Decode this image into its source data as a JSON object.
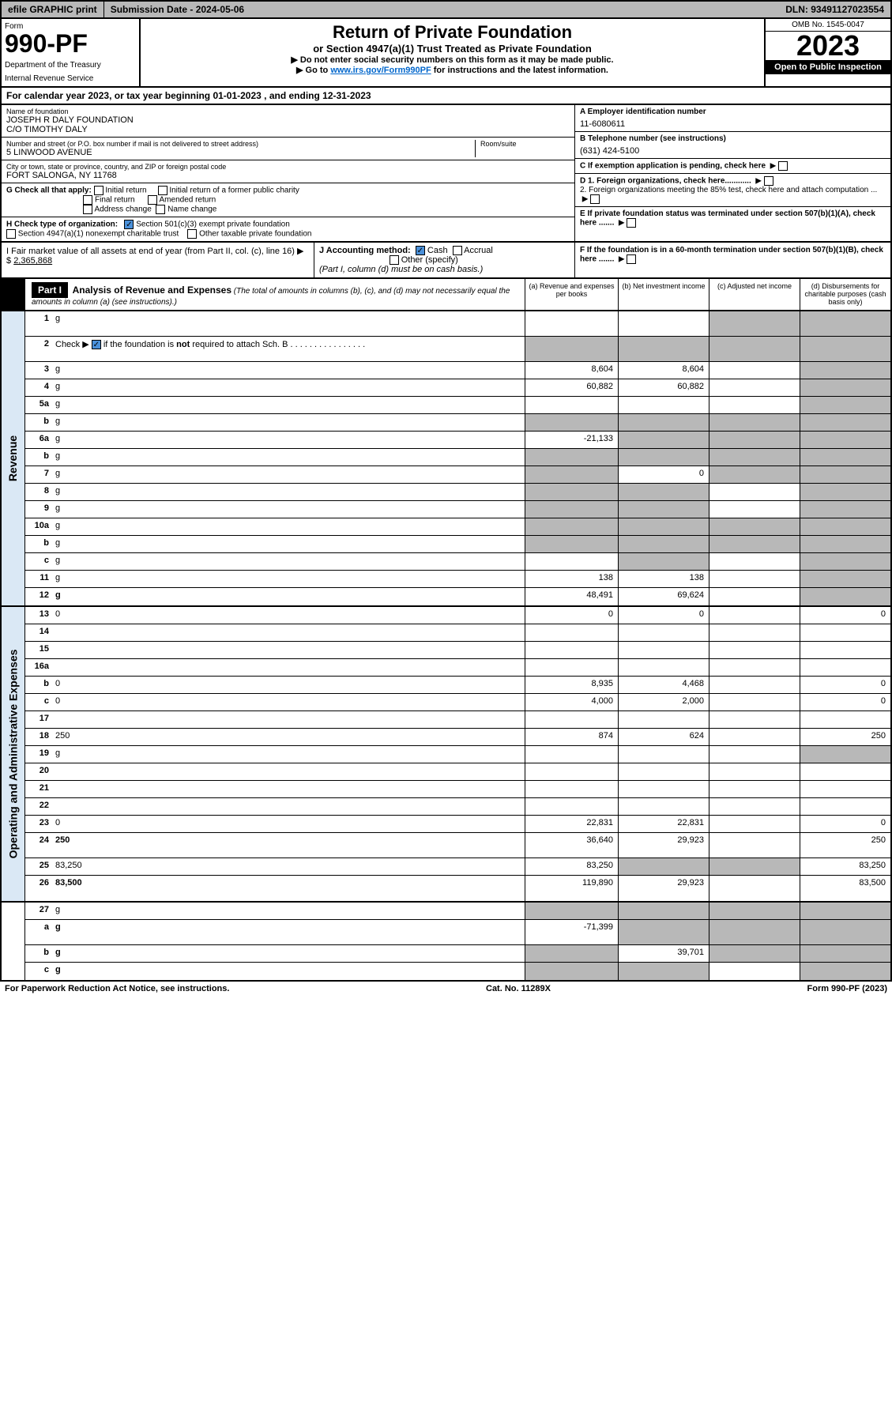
{
  "top": {
    "efile": "efile GRAPHIC print",
    "submission": "Submission Date - 2024-05-06",
    "dln": "DLN: 93491127023554"
  },
  "header": {
    "form_label": "Form",
    "form_number": "990-PF",
    "dept1": "Department of the Treasury",
    "dept2": "Internal Revenue Service",
    "title": "Return of Private Foundation",
    "subtitle": "or Section 4947(a)(1) Trust Treated as Private Foundation",
    "note1": "▶ Do not enter social security numbers on this form as it may be made public.",
    "note2_pre": "▶ Go to ",
    "note2_link": "www.irs.gov/Form990PF",
    "note2_post": " for instructions and the latest information.",
    "omb": "OMB No. 1545-0047",
    "year": "2023",
    "open": "Open to Public Inspection"
  },
  "cal_year": "For calendar year 2023, or tax year beginning 01-01-2023                                , and ending 12-31-2023",
  "info": {
    "name_label": "Name of foundation",
    "name1": "JOSEPH R DALY FOUNDATION",
    "name2": "C/O TIMOTHY DALY",
    "addr_label": "Number and street (or P.O. box number if mail is not delivered to street address)",
    "addr": "5 LINWOOD AVENUE",
    "room_label": "Room/suite",
    "city_label": "City or town, state or province, country, and ZIP or foreign postal code",
    "city": "FORT SALONGA, NY  11768",
    "a_label": "A Employer identification number",
    "a_val": "11-6080611",
    "b_label": "B Telephone number (see instructions)",
    "b_val": "(631) 424-5100",
    "c_label": "C If exemption application is pending, check here",
    "d1": "D 1. Foreign organizations, check here............",
    "d2": "2. Foreign organizations meeting the 85% test, check here and attach computation ...",
    "e_label": "E  If private foundation status was terminated under section 507(b)(1)(A), check here .......",
    "f_label": "F  If the foundation is in a 60-month termination under section 507(b)(1)(B), check here .......",
    "g_label": "G Check all that apply:",
    "g_opts": [
      "Initial return",
      "Initial return of a former public charity",
      "Final return",
      "Amended return",
      "Address change",
      "Name change"
    ],
    "h_label": "H Check type of organization:",
    "h_opt1": "Section 501(c)(3) exempt private foundation",
    "h_opt2": "Section 4947(a)(1) nonexempt charitable trust",
    "h_opt3": "Other taxable private foundation",
    "i_label": "I Fair market value of all assets at end of year (from Part II, col. (c), line 16) ▶ $",
    "i_val": "2,365,868",
    "j_label": "J Accounting method:",
    "j_cash": "Cash",
    "j_accrual": "Accrual",
    "j_other": "Other (specify)",
    "j_note": "(Part I, column (d) must be on cash basis.)"
  },
  "part1": {
    "label": "Part I",
    "title": "Analysis of Revenue and Expenses",
    "desc": " (The total of amounts in columns (b), (c), and (d) may not necessarily equal the amounts in column (a) (see instructions).)",
    "col_a": "(a)    Revenue and expenses per books",
    "col_b": "(b)   Net investment income",
    "col_c": "(c)   Adjusted net income",
    "col_d": "(d)   Disbursements for charitable purposes (cash basis only)"
  },
  "sections": {
    "revenue": "Revenue",
    "operating": "Operating and Administrative Expenses"
  },
  "rows": [
    {
      "n": "1",
      "d": "g",
      "a": "",
      "b": "",
      "c": "g",
      "tall": true
    },
    {
      "n": "2",
      "d": "g",
      "a": "g",
      "b": "g",
      "c": "g",
      "tall": true,
      "check": true
    },
    {
      "n": "3",
      "d": "g",
      "a": "8,604",
      "b": "8,604",
      "c": ""
    },
    {
      "n": "4",
      "d": "g",
      "a": "60,882",
      "b": "60,882",
      "c": ""
    },
    {
      "n": "5a",
      "d": "g",
      "a": "",
      "b": "",
      "c": ""
    },
    {
      "n": "b",
      "d": "g",
      "a": "g",
      "b": "g",
      "c": "g"
    },
    {
      "n": "6a",
      "d": "g",
      "a": "-21,133",
      "b": "g",
      "c": "g"
    },
    {
      "n": "b",
      "d": "g",
      "a": "g",
      "b": "g",
      "c": "g",
      "underline": true
    },
    {
      "n": "7",
      "d": "g",
      "a": "g",
      "b": "0",
      "c": "g"
    },
    {
      "n": "8",
      "d": "g",
      "a": "g",
      "b": "g",
      "c": ""
    },
    {
      "n": "9",
      "d": "g",
      "a": "g",
      "b": "g",
      "c": ""
    },
    {
      "n": "10a",
      "d": "g",
      "a": "g",
      "b": "g",
      "c": "g"
    },
    {
      "n": "b",
      "d": "g",
      "a": "g",
      "b": "g",
      "c": "g"
    },
    {
      "n": "c",
      "d": "g",
      "a": "",
      "b": "g",
      "c": ""
    },
    {
      "n": "11",
      "d": "g",
      "a": "138",
      "b": "138",
      "c": ""
    },
    {
      "n": "12",
      "d": "g",
      "a": "48,491",
      "b": "69,624",
      "c": "",
      "bold": true
    }
  ],
  "exp_rows": [
    {
      "n": "13",
      "d": "0",
      "a": "0",
      "b": "0",
      "c": ""
    },
    {
      "n": "14",
      "d": "",
      "a": "",
      "b": "",
      "c": ""
    },
    {
      "n": "15",
      "d": "",
      "a": "",
      "b": "",
      "c": ""
    },
    {
      "n": "16a",
      "d": "",
      "a": "",
      "b": "",
      "c": ""
    },
    {
      "n": "b",
      "d": "0",
      "a": "8,935",
      "b": "4,468",
      "c": ""
    },
    {
      "n": "c",
      "d": "0",
      "a": "4,000",
      "b": "2,000",
      "c": ""
    },
    {
      "n": "17",
      "d": "",
      "a": "",
      "b": "",
      "c": ""
    },
    {
      "n": "18",
      "d": "250",
      "a": "874",
      "b": "624",
      "c": ""
    },
    {
      "n": "19",
      "d": "g",
      "a": "",
      "b": "",
      "c": ""
    },
    {
      "n": "20",
      "d": "",
      "a": "",
      "b": "",
      "c": ""
    },
    {
      "n": "21",
      "d": "",
      "a": "",
      "b": "",
      "c": ""
    },
    {
      "n": "22",
      "d": "",
      "a": "",
      "b": "",
      "c": ""
    },
    {
      "n": "23",
      "d": "0",
      "a": "22,831",
      "b": "22,831",
      "c": ""
    },
    {
      "n": "24",
      "d": "250",
      "a": "36,640",
      "b": "29,923",
      "c": "",
      "bold": true,
      "tall": true
    },
    {
      "n": "25",
      "d": "83,250",
      "a": "83,250",
      "b": "g",
      "c": "g"
    },
    {
      "n": "26",
      "d": "83,500",
      "a": "119,890",
      "b": "29,923",
      "c": "",
      "bold": true,
      "tall": true
    }
  ],
  "final_rows": [
    {
      "n": "27",
      "d": "g",
      "a": "g",
      "b": "g",
      "c": "g"
    },
    {
      "n": "a",
      "d": "g",
      "a": "-71,399",
      "b": "g",
      "c": "g",
      "bold": true,
      "tall": true
    },
    {
      "n": "b",
      "d": "g",
      "a": "g",
      "b": "39,701",
      "c": "g",
      "bold": true
    },
    {
      "n": "c",
      "d": "g",
      "a": "g",
      "b": "g",
      "c": "",
      "bold": true
    }
  ],
  "footer": {
    "left": "For Paperwork Reduction Act Notice, see instructions.",
    "center": "Cat. No. 11289X",
    "right": "Form 990-PF (2023)"
  }
}
